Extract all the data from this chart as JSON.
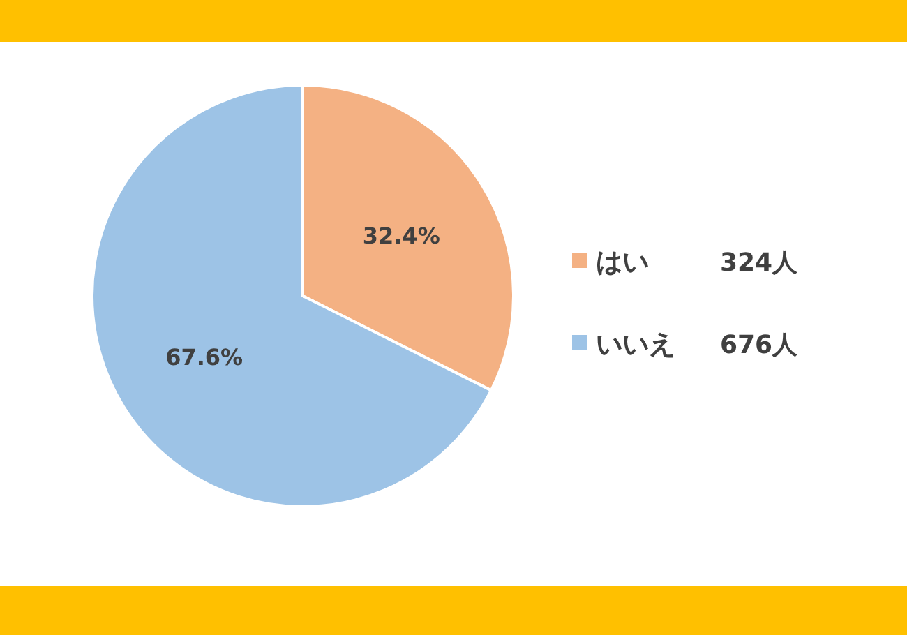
{
  "chart_data": {
    "type": "pie",
    "categories": [
      "はい",
      "いいえ"
    ],
    "values": [
      32.4,
      67.6
    ],
    "colors": [
      "#f4b183",
      "#9dc3e6"
    ],
    "value_labels": [
      "32.4%",
      "67.6%"
    ],
    "legend": "right",
    "annotations": [
      "324人",
      "676人"
    ]
  }
}
